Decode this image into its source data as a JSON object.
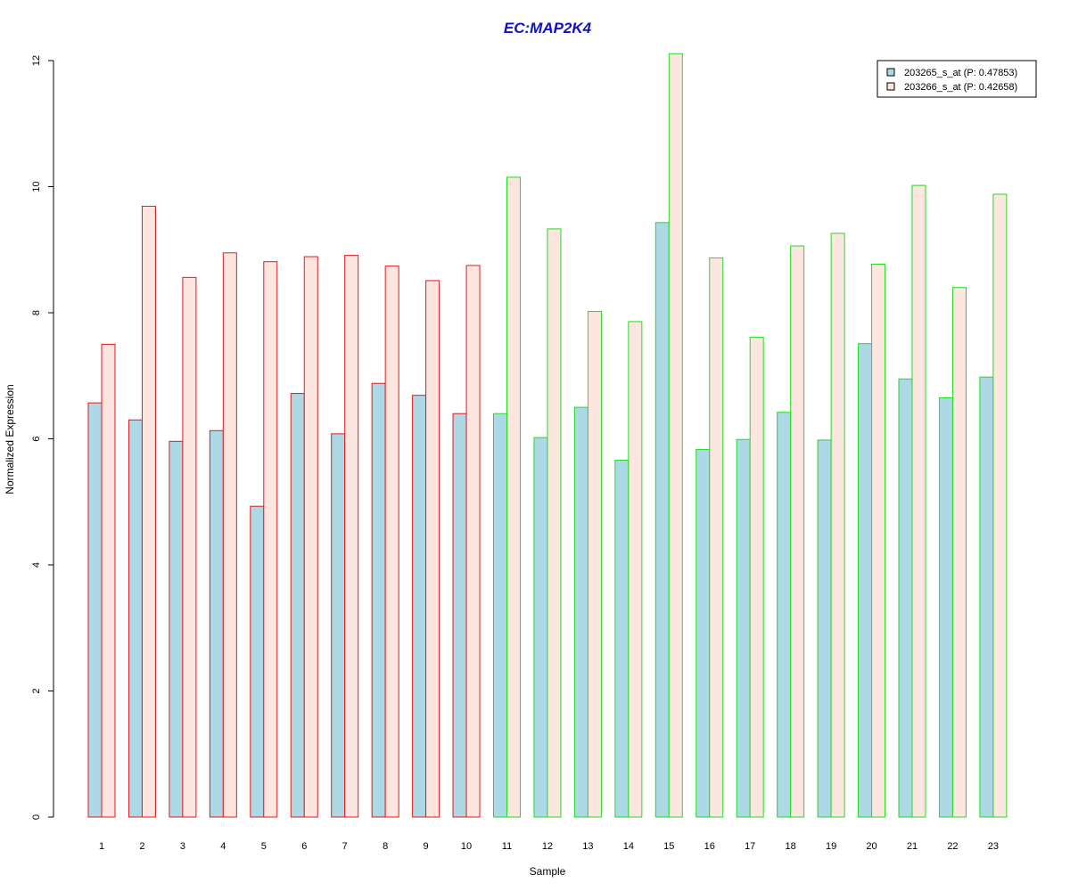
{
  "chart_data": {
    "type": "bar",
    "title": "EC:MAP2K4",
    "xlabel": "Sample",
    "ylabel": "Normalized Expression",
    "ylim": [
      0,
      12
    ],
    "yticks": [
      0,
      2,
      4,
      6,
      8,
      10,
      12
    ],
    "categories": [
      "1",
      "2",
      "3",
      "4",
      "5",
      "6",
      "7",
      "8",
      "9",
      "10",
      "11",
      "12",
      "13",
      "14",
      "15",
      "16",
      "17",
      "18",
      "19",
      "20",
      "21",
      "22",
      "23"
    ],
    "series": [
      {
        "name": "203265_s_at (P: 0.47853)",
        "fill": "#add8e6",
        "values": [
          6.57,
          6.3,
          5.96,
          6.13,
          4.93,
          6.72,
          6.08,
          6.88,
          6.69,
          6.4,
          6.4,
          6.02,
          6.5,
          5.66,
          9.43,
          5.83,
          5.99,
          6.42,
          5.98,
          7.51,
          6.95,
          6.65,
          6.98
        ]
      },
      {
        "name": "203266_s_at (P: 0.42658)",
        "fill": "#fde5e0",
        "values": [
          7.5,
          9.69,
          8.56,
          8.95,
          8.81,
          8.89,
          8.91,
          8.74,
          8.51,
          8.75,
          10.15,
          9.33,
          8.02,
          7.86,
          12.11,
          8.87,
          7.61,
          9.06,
          9.26,
          8.77,
          10.02,
          8.4,
          9.88
        ]
      }
    ],
    "group_border_colors": [
      "#e31a1c",
      "#e31a1c",
      "#e31a1c",
      "#e31a1c",
      "#e31a1c",
      "#e31a1c",
      "#e31a1c",
      "#e31a1c",
      "#e31a1c",
      "#e31a1c",
      "#22dd22",
      "#22dd22",
      "#22dd22",
      "#22dd22",
      "#22dd22",
      "#22dd22",
      "#22dd22",
      "#22dd22",
      "#22dd22",
      "#22dd22",
      "#22dd22",
      "#22dd22",
      "#22dd22"
    ],
    "title_color": "#1010cc",
    "legend_position": "top-right",
    "grid": false
  }
}
